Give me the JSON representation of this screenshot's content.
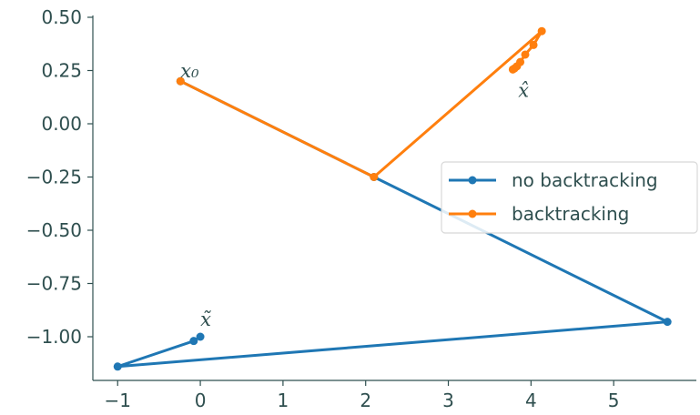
{
  "chart_data": {
    "type": "line",
    "title": "",
    "xlabel": "",
    "ylabel": "",
    "xlim": [
      -1.3,
      6.0
    ],
    "ylim": [
      -1.2,
      0.5
    ],
    "xticks": [
      -1,
      0,
      1,
      2,
      3,
      4,
      5
    ],
    "xtick_labels": [
      "−1",
      "0",
      "1",
      "2",
      "3",
      "4",
      "5"
    ],
    "yticks": [
      0.5,
      0.25,
      0.0,
      -0.25,
      -0.5,
      -0.75,
      -1.0
    ],
    "ytick_labels": [
      "0.50",
      "0.25",
      "0.00",
      "−0.25",
      "−0.50",
      "−0.75",
      "−1.00"
    ],
    "grid": false,
    "legend_position": "center-right",
    "series": [
      {
        "name": "no backtracking",
        "color": "#1f77b4",
        "x": [
          -0.24,
          2.1,
          5.65,
          -1.0,
          -0.08,
          0.0
        ],
        "y": [
          0.2,
          -0.25,
          -0.93,
          -1.14,
          -1.02,
          -1.0
        ]
      },
      {
        "name": "backtracking",
        "color": "#ff7f0e",
        "x": [
          -0.24,
          2.1,
          4.13,
          4.03,
          3.93,
          3.87,
          3.83,
          3.8,
          3.78
        ],
        "y": [
          0.2,
          -0.25,
          0.435,
          0.37,
          0.325,
          0.29,
          0.27,
          0.26,
          0.255
        ]
      }
    ],
    "annotations": [
      {
        "text": "x₀",
        "x": -0.24,
        "y": 0.2
      },
      {
        "text": "x̂",
        "x": 3.8,
        "y": 0.255
      },
      {
        "text": "x̃",
        "x": 0.0,
        "y": -1.0
      }
    ]
  }
}
